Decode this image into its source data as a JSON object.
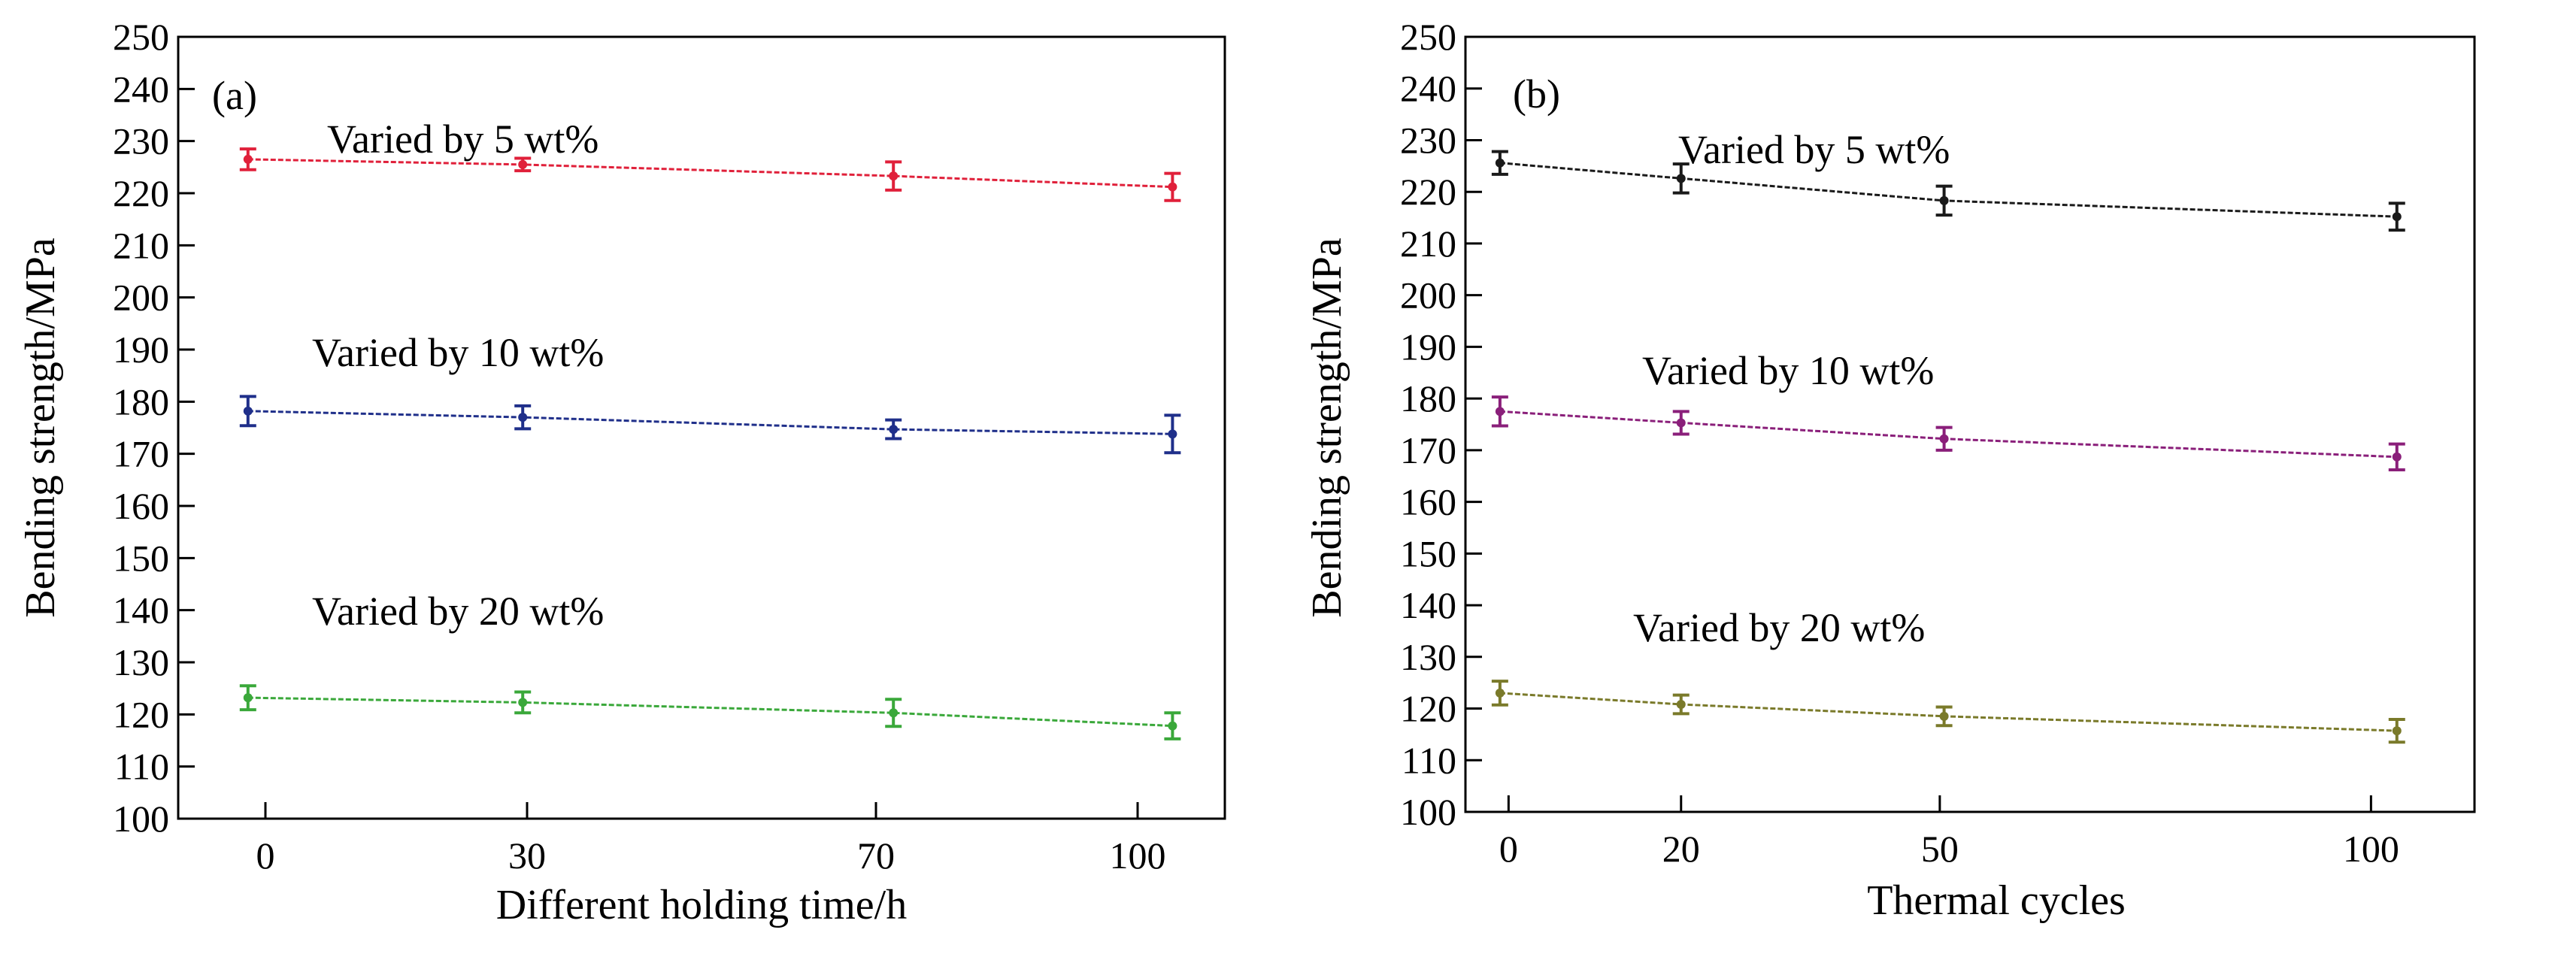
{
  "chart_data": [
    {
      "type": "line",
      "panel_label": "(a)",
      "xlabel": "Different holding time/h",
      "ylabel": "Bending strength/MPa",
      "x_ticks": [
        0,
        30,
        70,
        100
      ],
      "x_tick_labels": [
        "0",
        "30",
        "70",
        "100"
      ],
      "y_ticks": [
        100,
        110,
        120,
        130,
        140,
        150,
        160,
        170,
        180,
        190,
        200,
        210,
        220,
        230,
        240,
        250
      ],
      "y_tick_labels": [
        "100",
        "110",
        "120",
        "130",
        "140",
        "150",
        "160",
        "170",
        "180",
        "190",
        "200",
        "210",
        "220",
        "230",
        "240",
        "250"
      ],
      "xlim": [
        -10,
        110
      ],
      "ylim": [
        100,
        250
      ],
      "grid": false,
      "x": [
        -2,
        29.5,
        72,
        104
      ],
      "series": [
        {
          "name": "Varied by 5 wt%",
          "color": "#e0203a",
          "values": [
            226.5,
            225.5,
            223.3,
            221.2
          ],
          "errors": [
            2.0,
            1.2,
            2.7,
            2.6
          ]
        },
        {
          "name": "Varied by 10 wt%",
          "color": "#1f2f8a",
          "values": [
            178.2,
            177.0,
            174.7,
            173.8
          ],
          "errors": [
            2.8,
            2.2,
            1.8,
            3.6
          ]
        },
        {
          "name": "Varied by 20 wt%",
          "color": "#3aa83a",
          "values": [
            123.2,
            122.3,
            120.3,
            117.8
          ],
          "errors": [
            2.3,
            2.0,
            2.6,
            2.5
          ]
        }
      ]
    },
    {
      "type": "line",
      "panel_label": "(b)",
      "xlabel": "Thermal cycles",
      "ylabel": "Bending strength/MPa",
      "x_ticks": [
        0,
        20,
        50,
        100
      ],
      "x_tick_labels": [
        "0",
        "20",
        "50",
        "100"
      ],
      "y_ticks": [
        100,
        110,
        120,
        130,
        140,
        150,
        160,
        170,
        180,
        190,
        200,
        210,
        220,
        230,
        240,
        250
      ],
      "y_tick_labels": [
        "100",
        "110",
        "120",
        "130",
        "140",
        "150",
        "160",
        "170",
        "180",
        "190",
        "200",
        "210",
        "220",
        "230",
        "240",
        "250"
      ],
      "xlim": [
        -5,
        112
      ],
      "ylim": [
        100,
        250
      ],
      "grid": false,
      "x": [
        -1,
        20,
        50.5,
        103
      ],
      "series": [
        {
          "name": "Varied by 5 wt%",
          "color": "#1a1a1a",
          "values": [
            225.6,
            222.6,
            218.3,
            215.2
          ],
          "errors": [
            2.2,
            2.8,
            2.8,
            2.6
          ]
        },
        {
          "name": "Varied by 10 wt%",
          "color": "#8a1f7a",
          "values": [
            177.5,
            175.3,
            172.2,
            168.7
          ],
          "errors": [
            2.8,
            2.2,
            2.2,
            2.5
          ]
        },
        {
          "name": "Varied by 20 wt%",
          "color": "#7a7a2a",
          "values": [
            123.0,
            120.8,
            118.5,
            115.7
          ],
          "errors": [
            2.3,
            1.8,
            1.8,
            2.2
          ]
        }
      ]
    }
  ]
}
